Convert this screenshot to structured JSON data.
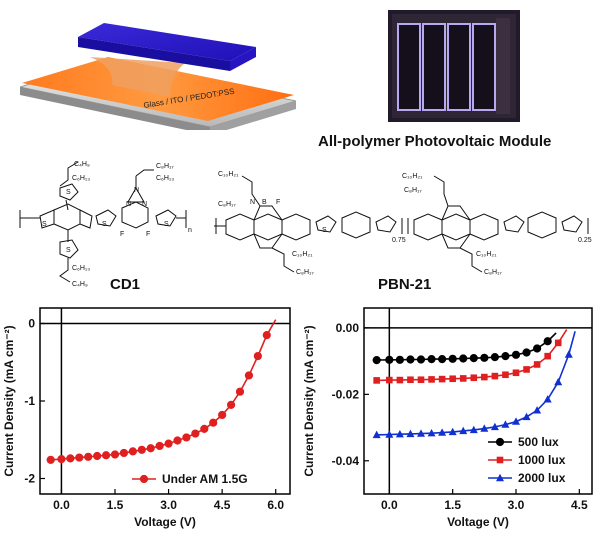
{
  "device": {
    "stack_label": "Glass / ITO / PEDOT:PSS"
  },
  "module": {
    "caption": "All-polymer Photovoltaic Module"
  },
  "molecules": {
    "left": {
      "name": "CD1",
      "groups": [
        "C₄H₉",
        "C₆H₁₃",
        "C₈H₁₇",
        "C₆H₁₃",
        "C₆H₁₃",
        "C₄H₉",
        "N",
        "N",
        "N",
        "F",
        "F",
        "S",
        "S",
        "S",
        "S",
        "S",
        "n"
      ]
    },
    "right": {
      "name": "PBN-21",
      "groups": [
        "C₁₀H₂₁",
        "C₈H₁₇",
        "C₁₀H₂₁",
        "C₈H₁₇",
        "C₁₀H₂₁",
        "C₈H₁₇",
        "C₁₀H₂₁",
        "C₈H₁₇",
        "0.75",
        "0.25",
        "B",
        "N",
        "F",
        "S"
      ]
    }
  },
  "chart_data": [
    {
      "type": "line",
      "xlabel": "Voltage (V)",
      "ylabel": "Current Density (mA cm⁻²)",
      "xlim": [
        -0.6,
        6.4
      ],
      "ylim": [
        -2.2,
        0.2
      ],
      "xticks": [
        "0.0",
        "1.5",
        "3.0",
        "4.5",
        "6.0"
      ],
      "yticks": [
        "0",
        "-1",
        "-2"
      ],
      "series": [
        {
          "name": "Under AM 1.5G",
          "color": "#e02020",
          "marker": "circle",
          "x": [
            -0.3,
            0,
            0.25,
            0.5,
            0.75,
            1,
            1.25,
            1.5,
            1.75,
            2,
            2.25,
            2.5,
            2.75,
            3,
            3.25,
            3.5,
            3.75,
            4,
            4.25,
            4.5,
            4.75,
            5,
            5.25,
            5.5,
            5.75,
            6
          ],
          "y": [
            -1.76,
            -1.75,
            -1.74,
            -1.73,
            -1.72,
            -1.71,
            -1.7,
            -1.69,
            -1.67,
            -1.65,
            -1.63,
            -1.61,
            -1.58,
            -1.55,
            -1.51,
            -1.47,
            -1.42,
            -1.36,
            -1.28,
            -1.18,
            -1.05,
            -0.88,
            -0.67,
            -0.42,
            -0.15,
            0.05
          ]
        }
      ],
      "legend": "bottom-right"
    },
    {
      "type": "line",
      "xlabel": "Voltage (V)",
      "ylabel": "Current Density (mA cm⁻²)",
      "xlim": [
        -0.6,
        4.8
      ],
      "ylim": [
        -0.05,
        0.006
      ],
      "xticks": [
        "0.0",
        "1.5",
        "3.0",
        "4.5"
      ],
      "yticks": [
        "0.00",
        "-0.02",
        "-0.04"
      ],
      "series": [
        {
          "name": "500 lux",
          "color": "#000000",
          "marker": "circle",
          "x": [
            -0.3,
            0,
            0.25,
            0.5,
            0.75,
            1,
            1.25,
            1.5,
            1.75,
            2,
            2.25,
            2.5,
            2.75,
            3,
            3.25,
            3.5,
            3.75,
            3.95
          ],
          "y": [
            -0.0097,
            -0.0096,
            -0.0096,
            -0.0095,
            -0.0095,
            -0.0094,
            -0.0094,
            -0.0093,
            -0.0092,
            -0.0091,
            -0.009,
            -0.0088,
            -0.0085,
            -0.0081,
            -0.0074,
            -0.0062,
            -0.004,
            -0.0015
          ]
        },
        {
          "name": "1000 lux",
          "color": "#e02020",
          "marker": "square",
          "x": [
            -0.3,
            0,
            0.25,
            0.5,
            0.75,
            1,
            1.25,
            1.5,
            1.75,
            2,
            2.25,
            2.5,
            2.75,
            3,
            3.25,
            3.5,
            3.75,
            4,
            4.2
          ],
          "y": [
            -0.0158,
            -0.0157,
            -0.0157,
            -0.0156,
            -0.0156,
            -0.0155,
            -0.0154,
            -0.0153,
            -0.0152,
            -0.015,
            -0.0148,
            -0.0145,
            -0.0141,
            -0.0135,
            -0.0125,
            -0.011,
            -0.0085,
            -0.0045,
            -0.0005
          ]
        },
        {
          "name": "2000 lux",
          "color": "#1030d0",
          "marker": "triangle",
          "x": [
            -0.3,
            0,
            0.25,
            0.5,
            0.75,
            1,
            1.25,
            1.5,
            1.75,
            2,
            2.25,
            2.5,
            2.75,
            3,
            3.25,
            3.5,
            3.75,
            4,
            4.25,
            4.4
          ],
          "y": [
            -0.0322,
            -0.0321,
            -0.032,
            -0.0319,
            -0.0318,
            -0.0317,
            -0.0315,
            -0.0313,
            -0.031,
            -0.0307,
            -0.0303,
            -0.0298,
            -0.0291,
            -0.0282,
            -0.0268,
            -0.0248,
            -0.0215,
            -0.0163,
            -0.008,
            -0.001
          ]
        }
      ],
      "legend": "bottom-right"
    }
  ]
}
